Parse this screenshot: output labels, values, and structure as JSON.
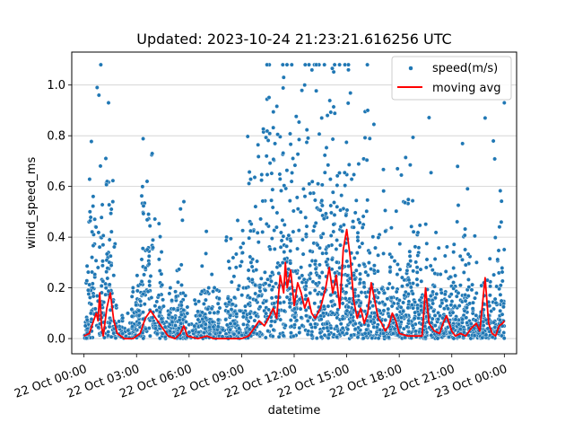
{
  "chart_data": {
    "type": "scatter",
    "title": "Updated: 2023-10-24 21:23:21.616256 UTC",
    "xlabel": "datetime",
    "ylabel": "wind_speed_ms",
    "x_range_hours": [
      -0.7,
      24.7
    ],
    "ylim": [
      -0.06,
      1.13
    ],
    "grid": "y-axis horizontal lines",
    "legend_position": "top-right",
    "x_ticks": [
      {
        "hour": 0,
        "label": "22 Oct 00:00"
      },
      {
        "hour": 3,
        "label": "22 Oct 03:00"
      },
      {
        "hour": 6,
        "label": "22 Oct 06:00"
      },
      {
        "hour": 9,
        "label": "22 Oct 09:00"
      },
      {
        "hour": 12,
        "label": "22 Oct 12:00"
      },
      {
        "hour": 15,
        "label": "22 Oct 15:00"
      },
      {
        "hour": 18,
        "label": "22 Oct 18:00"
      },
      {
        "hour": 21,
        "label": "22 Oct 21:00"
      },
      {
        "hour": 24,
        "label": "23 Oct 00:00"
      }
    ],
    "y_ticks": [
      {
        "value": 0.0,
        "label": "0.0"
      },
      {
        "value": 0.2,
        "label": "0.2"
      },
      {
        "value": 0.4,
        "label": "0.4"
      },
      {
        "value": 0.6,
        "label": "0.6"
      },
      {
        "value": 0.8,
        "label": "0.8"
      },
      {
        "value": 1.0,
        "label": "1.0"
      }
    ],
    "series": [
      {
        "name": "speed(m/s)",
        "kind": "scatter",
        "color": "#1f77b4",
        "density_profile_hours_value": [
          [
            0.0,
            0.02
          ],
          [
            0.4,
            0.25
          ],
          [
            0.8,
            0.45
          ],
          [
            1.1,
            0.25
          ],
          [
            1.5,
            0.3
          ],
          [
            1.9,
            0.05
          ],
          [
            2.5,
            0.05
          ],
          [
            3.0,
            0.1
          ],
          [
            3.4,
            0.25
          ],
          [
            3.8,
            0.35
          ],
          [
            4.2,
            0.2
          ],
          [
            4.6,
            0.05
          ],
          [
            5.3,
            0.12
          ],
          [
            6.0,
            0.05
          ],
          [
            7.0,
            0.1
          ],
          [
            8.0,
            0.06
          ],
          [
            9.0,
            0.2
          ],
          [
            9.8,
            0.25
          ],
          [
            10.6,
            0.35
          ],
          [
            11.4,
            0.42
          ],
          [
            12.2,
            0.38
          ],
          [
            13.0,
            0.4
          ],
          [
            13.8,
            0.42
          ],
          [
            14.6,
            0.35
          ],
          [
            15.4,
            0.3
          ],
          [
            16.2,
            0.26
          ],
          [
            17.0,
            0.2
          ],
          [
            17.8,
            0.1
          ],
          [
            18.6,
            0.2
          ],
          [
            19.4,
            0.12
          ],
          [
            20.0,
            0.18
          ],
          [
            20.8,
            0.1
          ],
          [
            21.5,
            0.25
          ],
          [
            22.3,
            0.08
          ],
          [
            23.0,
            0.1
          ],
          [
            23.6,
            0.2
          ],
          [
            24.0,
            0.12
          ]
        ],
        "notable_points": [
          {
            "x": 0.75,
            "y": 0.99
          },
          {
            "x": 0.85,
            "y": 0.96
          },
          {
            "x": 1.4,
            "y": 0.93
          },
          {
            "x": 3.6,
            "y": 0.62
          },
          {
            "x": 5.7,
            "y": 0.54
          },
          {
            "x": 11.4,
            "y": 1.03
          },
          {
            "x": 12.6,
            "y": 1.0
          },
          {
            "x": 14.9,
            "y": 1.08
          },
          {
            "x": 15.1,
            "y": 1.06
          },
          {
            "x": 16.2,
            "y": 0.9
          },
          {
            "x": 17.9,
            "y": 0.67
          },
          {
            "x": 22.9,
            "y": 0.87
          },
          {
            "x": 24.0,
            "y": 0.93
          }
        ]
      },
      {
        "name": "moving avg",
        "kind": "line",
        "color": "#ff0000",
        "points": [
          [
            0.0,
            0.01
          ],
          [
            0.3,
            0.02
          ],
          [
            0.5,
            0.06
          ],
          [
            0.7,
            0.1
          ],
          [
            0.8,
            0.07
          ],
          [
            0.9,
            0.18
          ],
          [
            1.0,
            0.05
          ],
          [
            1.1,
            0.01
          ],
          [
            1.3,
            0.12
          ],
          [
            1.5,
            0.18
          ],
          [
            1.7,
            0.07
          ],
          [
            1.9,
            0.02
          ],
          [
            2.3,
            0.0
          ],
          [
            2.8,
            0.0
          ],
          [
            3.0,
            0.01
          ],
          [
            3.2,
            0.02
          ],
          [
            3.5,
            0.08
          ],
          [
            3.8,
            0.11
          ],
          [
            4.1,
            0.08
          ],
          [
            4.4,
            0.05
          ],
          [
            4.8,
            0.01
          ],
          [
            5.2,
            0.0
          ],
          [
            5.5,
            0.02
          ],
          [
            5.7,
            0.05
          ],
          [
            5.9,
            0.01
          ],
          [
            6.5,
            0.0
          ],
          [
            7.0,
            0.01
          ],
          [
            7.4,
            0.0
          ],
          [
            8.0,
            0.0
          ],
          [
            9.0,
            0.0
          ],
          [
            9.4,
            0.01
          ],
          [
            9.7,
            0.04
          ],
          [
            10.0,
            0.07
          ],
          [
            10.3,
            0.05
          ],
          [
            10.6,
            0.09
          ],
          [
            10.8,
            0.12
          ],
          [
            11.0,
            0.08
          ],
          [
            11.2,
            0.25
          ],
          [
            11.4,
            0.18
          ],
          [
            11.5,
            0.3
          ],
          [
            11.6,
            0.2
          ],
          [
            11.8,
            0.27
          ],
          [
            12.0,
            0.13
          ],
          [
            12.2,
            0.22
          ],
          [
            12.4,
            0.18
          ],
          [
            12.6,
            0.12
          ],
          [
            12.8,
            0.16
          ],
          [
            13.0,
            0.1
          ],
          [
            13.2,
            0.08
          ],
          [
            13.5,
            0.12
          ],
          [
            13.8,
            0.2
          ],
          [
            14.0,
            0.28
          ],
          [
            14.2,
            0.18
          ],
          [
            14.4,
            0.25
          ],
          [
            14.6,
            0.12
          ],
          [
            14.8,
            0.35
          ],
          [
            15.0,
            0.43
          ],
          [
            15.2,
            0.32
          ],
          [
            15.4,
            0.15
          ],
          [
            15.6,
            0.08
          ],
          [
            15.8,
            0.12
          ],
          [
            16.0,
            0.06
          ],
          [
            16.2,
            0.1
          ],
          [
            16.4,
            0.22
          ],
          [
            16.6,
            0.15
          ],
          [
            16.8,
            0.08
          ],
          [
            17.0,
            0.06
          ],
          [
            17.2,
            0.03
          ],
          [
            17.4,
            0.05
          ],
          [
            17.6,
            0.1
          ],
          [
            17.8,
            0.07
          ],
          [
            18.0,
            0.02
          ],
          [
            18.5,
            0.01
          ],
          [
            19.0,
            0.01
          ],
          [
            19.3,
            0.01
          ],
          [
            19.5,
            0.2
          ],
          [
            19.7,
            0.06
          ],
          [
            20.0,
            0.03
          ],
          [
            20.3,
            0.02
          ],
          [
            20.5,
            0.06
          ],
          [
            20.7,
            0.09
          ],
          [
            21.0,
            0.03
          ],
          [
            21.2,
            0.01
          ],
          [
            21.5,
            0.02
          ],
          [
            21.8,
            0.01
          ],
          [
            22.1,
            0.04
          ],
          [
            22.4,
            0.06
          ],
          [
            22.6,
            0.03
          ],
          [
            22.9,
            0.24
          ],
          [
            23.1,
            0.06
          ],
          [
            23.3,
            0.02
          ],
          [
            23.5,
            0.01
          ],
          [
            23.7,
            0.05
          ],
          [
            23.9,
            0.06
          ],
          [
            24.0,
            0.07
          ]
        ]
      }
    ],
    "legend": [
      {
        "label": "speed(m/s)",
        "marker": "dot",
        "color": "#1f77b4"
      },
      {
        "label": "moving avg",
        "marker": "line",
        "color": "#ff0000"
      }
    ]
  }
}
